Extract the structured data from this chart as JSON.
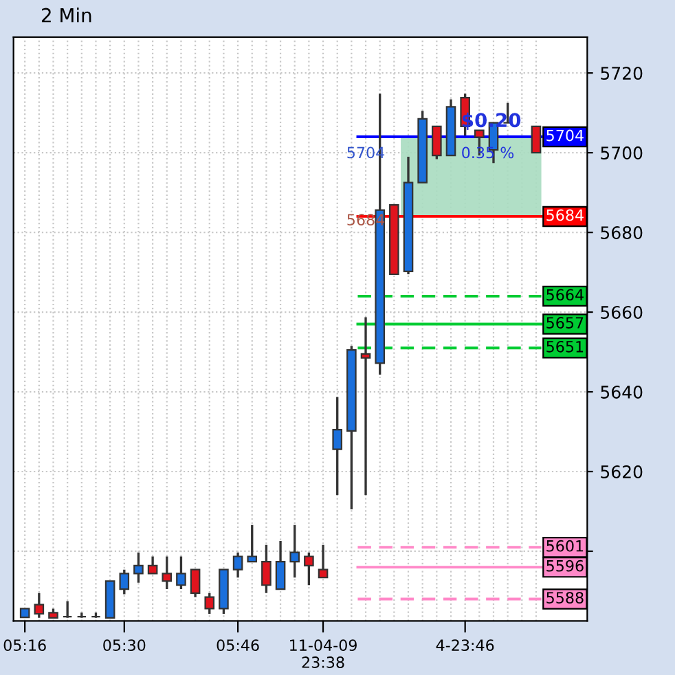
{
  "chart_data": {
    "type": "candlestick",
    "title": "2 Min",
    "categories": [
      "05:16",
      null,
      null,
      null,
      null,
      null,
      null,
      "05:30",
      null,
      null,
      null,
      null,
      null,
      null,
      null,
      "05:46",
      null,
      null,
      null,
      null,
      null,
      "11-04-09 23:38",
      null,
      null,
      null,
      null,
      null,
      null,
      null,
      null,
      null,
      "4-23:46",
      null,
      null,
      null,
      null,
      null
    ],
    "ohlc": [
      [
        5583.4,
        5585.6,
        5583.4,
        5585.6
      ],
      [
        5586.6,
        5589.5,
        5583.3,
        5584.3
      ],
      [
        5584.6,
        5585.6,
        5583.3,
        5583.3
      ],
      [
        5583.6,
        5587.5,
        5583.3,
        5583.6
      ],
      [
        5583.6,
        5584.6,
        5583.3,
        5583.6
      ],
      [
        5583.6,
        5584.6,
        5583.3,
        5583.6
      ],
      [
        5583.3,
        5592.5,
        5583.3,
        5592.5
      ],
      [
        5590.5,
        5595.4,
        5589.2,
        5594.4
      ],
      [
        5594.4,
        5599.7,
        5592.1,
        5596.4
      ],
      [
        5596.4,
        5598.7,
        5594.4,
        5594.4
      ],
      [
        5594.4,
        5598.7,
        5590.5,
        5592.5
      ],
      [
        5591.5,
        5598.7,
        5590.5,
        5594.4
      ],
      [
        5595.4,
        5595.4,
        5588.5,
        5589.5
      ],
      [
        5588.5,
        5589.5,
        5584.3,
        5585.6
      ],
      [
        5585.6,
        5595.4,
        5584.3,
        5595.4
      ],
      [
        5595.4,
        5599.7,
        5593.4,
        5598.7
      ],
      [
        5597.4,
        5606.6,
        5597.4,
        5598.7
      ],
      [
        5597.4,
        5601.6,
        5589.5,
        5591.5
      ],
      [
        5590.5,
        5602.6,
        5590.5,
        5597.4
      ],
      [
        5597.4,
        5606.6,
        5593.4,
        5599.7
      ],
      [
        5598.7,
        5599.7,
        5591.5,
        5596.4
      ],
      [
        5595.4,
        5601.6,
        5593.4,
        5593.4
      ],
      [
        5625.6,
        5638.7,
        5614.1,
        5630.5
      ],
      [
        5630.2,
        5651.5,
        5610.5,
        5650.5
      ],
      [
        5649.5,
        5658.7,
        5614.1,
        5648.5
      ],
      [
        5647.2,
        5714.8,
        5644.3,
        5685.6
      ],
      [
        5686.9,
        5686.9,
        5669.5,
        5669.5
      ],
      [
        5670.2,
        5699.0,
        5669.5,
        5692.5
      ],
      [
        5692.5,
        5710.5,
        5692.5,
        5708.5
      ],
      [
        5706.6,
        5706.6,
        5698.4,
        5699.3
      ],
      [
        5699.3,
        5713.4,
        5699.3,
        5711.5
      ],
      [
        5713.8,
        5714.8,
        5704.3,
        5706.6
      ],
      [
        5705.6,
        5705.6,
        5699.3,
        5703.9
      ],
      [
        5700.7,
        5707.5,
        5697.4,
        5707.5
      ],
      [
        5707.5,
        5712.5,
        5707.5,
        5707.5
      ],
      null,
      [
        5706.6,
        5706.6,
        5700.0,
        5700.0
      ]
    ],
    "colors": [
      "#1a6fdc",
      "#e0141e",
      "#e0141e",
      "#333333",
      "#333333",
      "#333333",
      "#1a6fdc",
      "#1a6fdc",
      "#1a6fdc",
      "#e0141e",
      "#e0141e",
      "#1a6fdc",
      "#e0141e",
      "#e0141e",
      "#1a6fdc",
      "#1a6fdc",
      "#1a6fdc",
      "#e0141e",
      "#1a6fdc",
      "#1a6fdc",
      "#e0141e",
      "#e0141e",
      "#1a6fdc",
      "#1a6fdc",
      "#e0141e",
      "#1a6fdc",
      "#e0141e",
      "#1a6fdc",
      "#1a6fdc",
      "#e0141e",
      "#1a6fdc",
      "#e0141e",
      "#e0141e",
      "#1a6fdc",
      "#333333",
      "#e0141e",
      "#e0141e"
    ],
    "ylim": [
      5582.5,
      5729
    ],
    "yticks": [
      5720,
      5700,
      5680,
      5660,
      {
        "value": 5640,
        "label": "5640"
      },
      5620,
      {
        "value": 5600,
        "label": null
      }
    ],
    "grid": true,
    "ref_lines": [
      {
        "axis": "y",
        "value": 5704,
        "label": "5704",
        "color": "#0000ff",
        "line_style": "solid"
      },
      {
        "axis": "y",
        "value": 5684,
        "label": "5684",
        "color": "#ff0000",
        "line_style": "solid"
      },
      {
        "axis": "y",
        "value": 5664,
        "label": "5664",
        "color": "#00cc33",
        "line_style": "dashed"
      },
      {
        "axis": "y",
        "value": 5657,
        "label": "5657",
        "color": "#00cc33",
        "line_style": "solid"
      },
      {
        "axis": "y",
        "value": 5651,
        "label": "5651",
        "color": "#00cc33",
        "line_style": "dashed"
      },
      {
        "axis": "y",
        "value": 5601,
        "label": "5601",
        "color": "#ff88c8",
        "line_style": "dashed"
      },
      {
        "axis": "y",
        "value": 5596,
        "label": "5596",
        "color": "#ff88c8",
        "line_style": "solid"
      },
      {
        "axis": "y",
        "value": 5588,
        "label": "5588",
        "color": "#ff88c8",
        "line_style": "dashed"
      }
    ],
    "bands": [
      {
        "axis": "y",
        "from": 5684,
        "to": 5704,
        "color": "#a8dcc0"
      }
    ],
    "annotations": [
      "$0.20",
      "0.35 %",
      "5704",
      "5684"
    ]
  }
}
